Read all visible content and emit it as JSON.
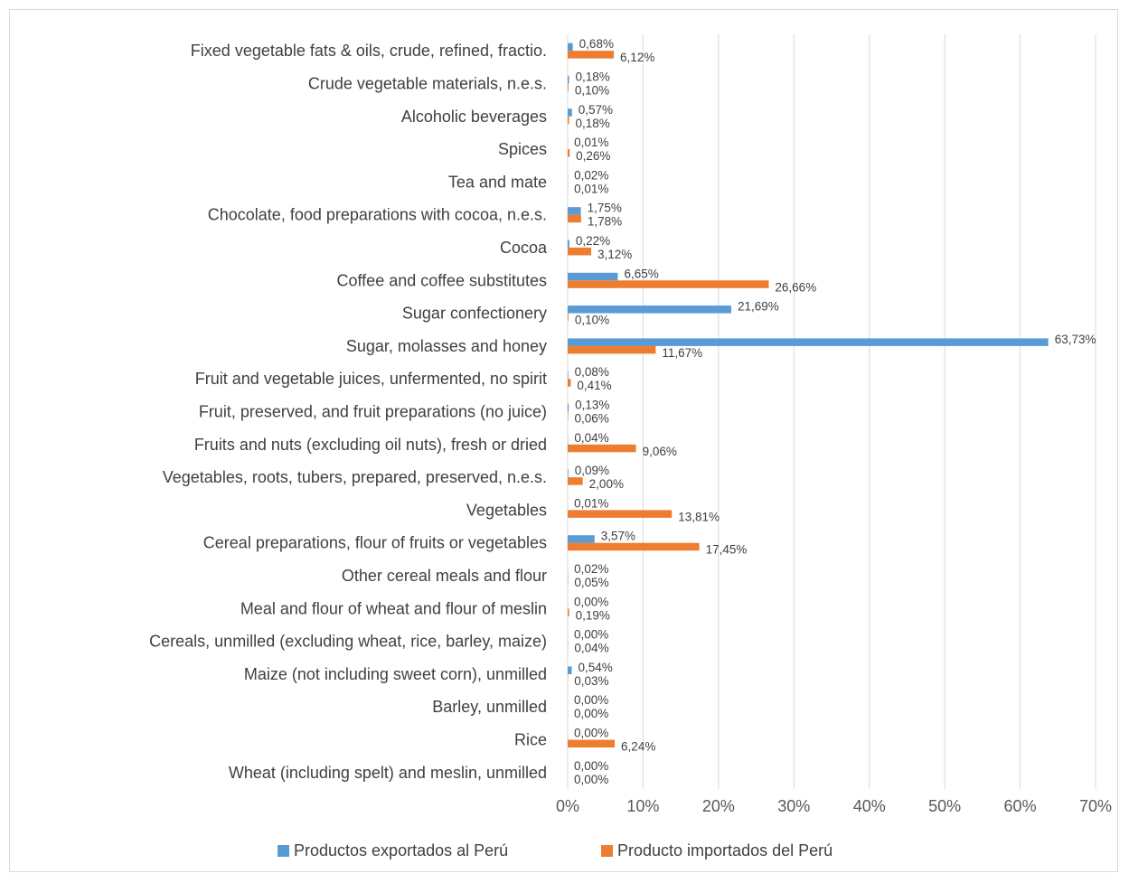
{
  "chart_data": {
    "type": "bar",
    "orientation": "horizontal",
    "title": "",
    "xlabel": "",
    "ylabel": "",
    "xlim": [
      0,
      70
    ],
    "x_ticks": [
      "0%",
      "10%",
      "20%",
      "30%",
      "40%",
      "50%",
      "60%",
      "70%"
    ],
    "grid": "vertical",
    "legend_position": "bottom",
    "categories": [
      "Fixed vegetable fats & oils, crude, refined, fractio.",
      "Crude vegetable materials, n.e.s.",
      "Alcoholic beverages",
      "Spices",
      "Tea and mate",
      "Chocolate, food preparations with cocoa, n.e.s.",
      "Cocoa",
      "Coffee and coffee substitutes",
      "Sugar confectionery",
      "Sugar, molasses and honey",
      "Fruit and vegetable juices, unfermented, no spirit",
      "Fruit, preserved, and fruit preparations (no juice)",
      "Fruits and nuts (excluding oil nuts), fresh or dried",
      "Vegetables, roots, tubers, prepared, preserved, n.e.s.",
      "Vegetables",
      "Cereal preparations, flour of fruits or vegetables",
      "Other cereal meals and flour",
      "Meal and flour of wheat and flour of meslin",
      "Cereals, unmilled (excluding wheat, rice, barley, maize)",
      "Maize (not including sweet corn), unmilled",
      "Barley, unmilled",
      "Rice",
      "Wheat (including spelt) and meslin, unmilled"
    ],
    "series": [
      {
        "name": "Productos exportados al Perú",
        "color": "#5b9bd5",
        "values": [
          0.68,
          0.18,
          0.57,
          0.01,
          0.02,
          1.75,
          0.22,
          6.65,
          21.69,
          63.73,
          0.08,
          0.13,
          0.04,
          0.09,
          0.01,
          3.57,
          0.02,
          0.0,
          0.0,
          0.54,
          0.0,
          0.0,
          0.0
        ],
        "labels": [
          "0,68%",
          "0,18%",
          "0,57%",
          "0,01%",
          "0,02%",
          "1,75%",
          "0,22%",
          "6,65%",
          "21,69%",
          "63,73%",
          "0,08%",
          "0,13%",
          "0,04%",
          "0,09%",
          "0,01%",
          "3,57%",
          "0,02%",
          "0,00%",
          "0,00%",
          "0,54%",
          "0,00%",
          "0,00%",
          "0,00%"
        ]
      },
      {
        "name": "Producto importados del Perú",
        "color": "#ed7d31",
        "values": [
          6.12,
          0.1,
          0.18,
          0.26,
          0.01,
          1.78,
          3.12,
          26.66,
          0.1,
          11.67,
          0.41,
          0.06,
          9.06,
          2.0,
          13.81,
          17.45,
          0.05,
          0.19,
          0.04,
          0.03,
          0.0,
          6.24,
          0.0
        ],
        "labels": [
          "6,12%",
          "0,10%",
          "0,18%",
          "0,26%",
          "0,01%",
          "1,78%",
          "3,12%",
          "26,66%",
          "0,10%",
          "11,67%",
          "0,41%",
          "0,06%",
          "9,06%",
          "2,00%",
          "13,81%",
          "17,45%",
          "0,05%",
          "0,19%",
          "0,04%",
          "0,03%",
          "0,00%",
          "6,24%",
          "0,00%"
        ]
      }
    ]
  }
}
